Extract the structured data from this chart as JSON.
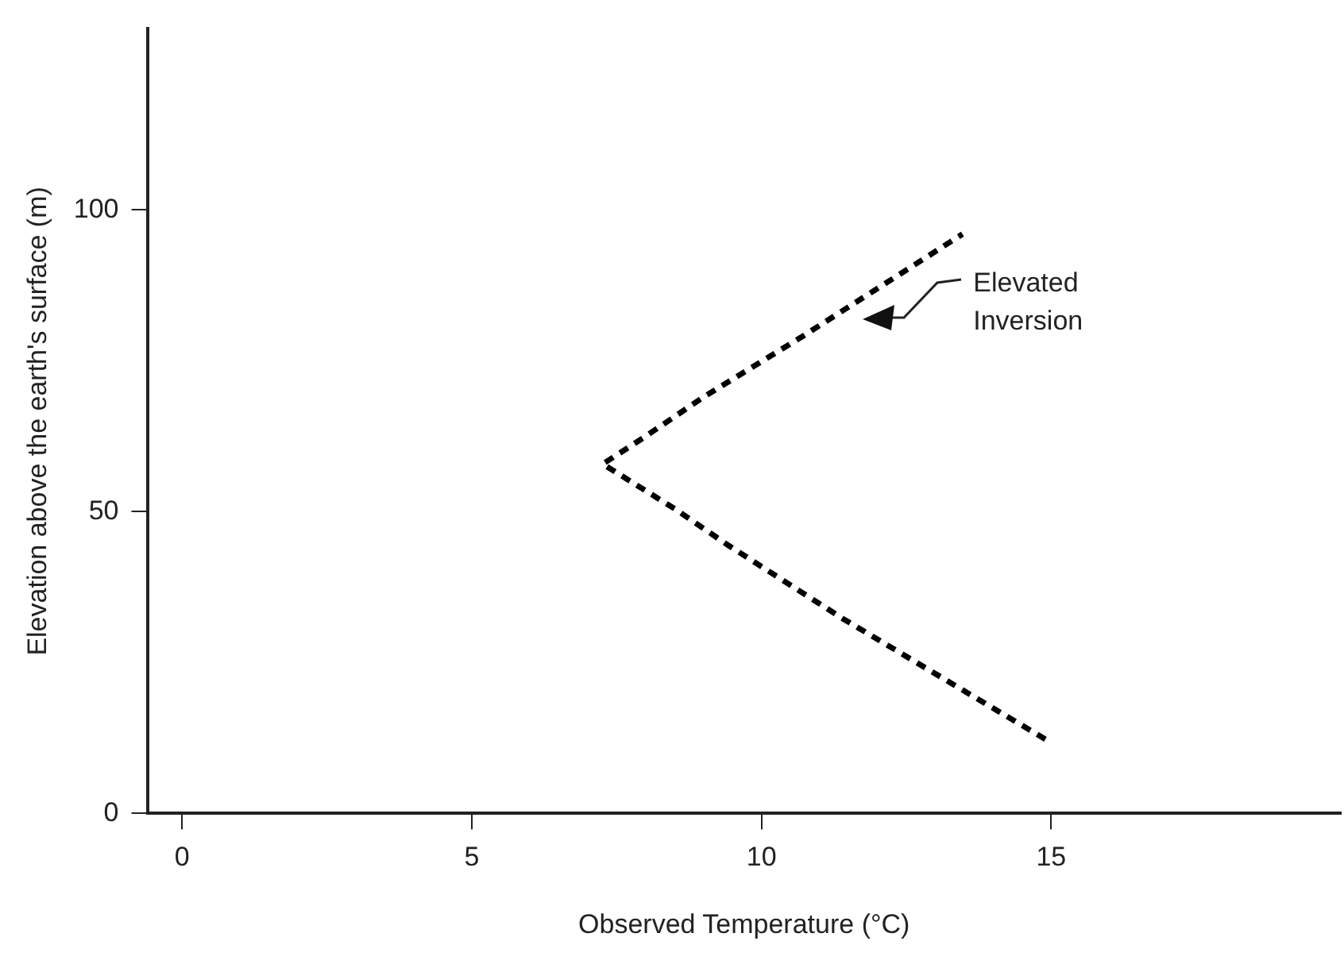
{
  "chart_data": {
    "type": "line",
    "xlabel": "Observed Temperature (°C)",
    "ylabel": "Elevation above the earth's surface (m)",
    "series": [
      {
        "color": "#000000",
        "x": [
          14.9,
          11.4,
          9.4,
          8.5,
          7.26,
          7.97,
          9.0,
          10.7,
          13.47
        ],
        "values": [
          12.3,
          32.3,
          44.6,
          50.5,
          57.9,
          62.3,
          69,
          79,
          96
        ]
      }
    ],
    "xlim": [
      -0.6,
      20
    ],
    "xticks": [
      0,
      5,
      10,
      15
    ],
    "ylim": [
      0,
      130
    ],
    "yticks": [
      0,
      50,
      100
    ],
    "grid": false,
    "legend": false,
    "marker": "none",
    "line_style": "dashed",
    "annotations": [
      "Elevated Inversion"
    ]
  }
}
